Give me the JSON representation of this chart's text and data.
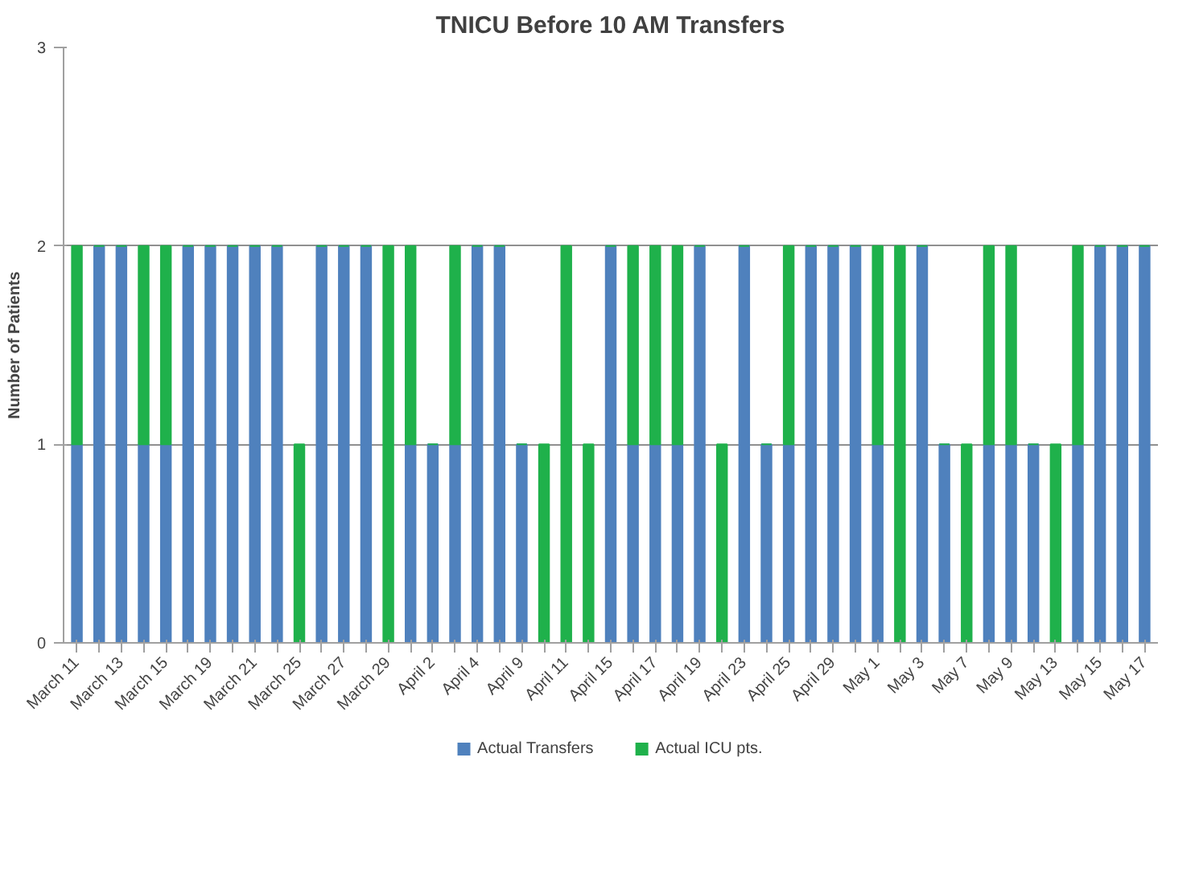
{
  "chart_data": {
    "type": "bar",
    "title": "TNICU Before 10 AM Transfers",
    "ylabel": "Number of Patients",
    "categories": [
      "March 11",
      null,
      "March 13",
      null,
      "March 15",
      null,
      "March 19",
      null,
      "March 21",
      null,
      "March 25",
      null,
      "March 27",
      null,
      "March 29",
      null,
      "April 2",
      null,
      "April 4",
      null,
      "April 9",
      null,
      "April 11",
      null,
      "April 15",
      null,
      "April 17",
      null,
      "April 19",
      null,
      "April 23",
      null,
      "April 25",
      null,
      "April 29",
      null,
      "May 1",
      null,
      "May 3",
      null,
      "May 7",
      null,
      "May 9",
      null,
      "May 13",
      null,
      "May 15",
      null,
      "May 17"
    ],
    "series": [
      {
        "name": "Actual Transfers",
        "color": "#4f81bd",
        "values": [
          1,
          2,
          2,
          1,
          1,
          2,
          2,
          2,
          2,
          2,
          0,
          2,
          2,
          2,
          0,
          1,
          1,
          1,
          2,
          2,
          1,
          0,
          0,
          0,
          2,
          1,
          1,
          1,
          2,
          0,
          2,
          1,
          1,
          2,
          2,
          2,
          1,
          0,
          2,
          1,
          0,
          1,
          1,
          1,
          0,
          1,
          2,
          2,
          2
        ]
      },
      {
        "name": "Actual ICU pts.",
        "color": "#1fb14b",
        "values": [
          1,
          0,
          0,
          1,
          1,
          0,
          0,
          0,
          0,
          0,
          1,
          0,
          0,
          0,
          2,
          1,
          0,
          1,
          0,
          0,
          0,
          1,
          2,
          1,
          0,
          1,
          1,
          1,
          0,
          1,
          0,
          0,
          1,
          0,
          0,
          0,
          1,
          2,
          0,
          0,
          1,
          1,
          1,
          0,
          1,
          1,
          0,
          0,
          0
        ]
      }
    ],
    "stacked": true,
    "ylim": [
      0,
      3
    ],
    "yticks": [
      0,
      1,
      2,
      3
    ],
    "grid": "y",
    "legend": "bottom"
  }
}
